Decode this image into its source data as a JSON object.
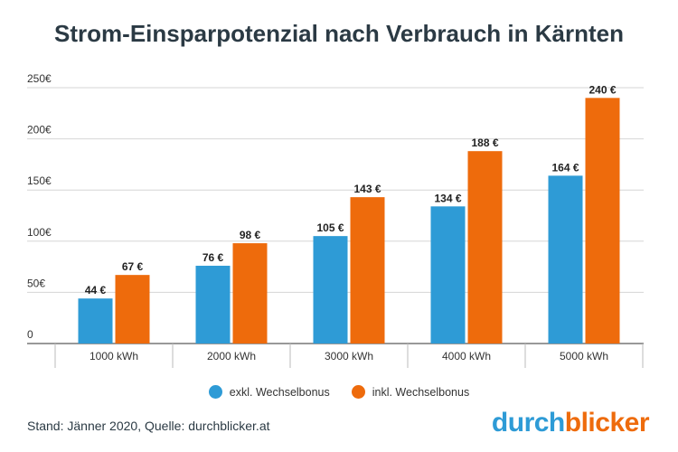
{
  "chart_data": {
    "type": "bar",
    "title": "Strom-Einsparpotenzial nach Verbrauch in Kärnten",
    "categories": [
      "1000 kWh",
      "2000 kWh",
      "3000 kWh",
      "4000 kWh",
      "5000 kWh"
    ],
    "series": [
      {
        "name": "exkl. Wechselbonus",
        "values": [
          44,
          76,
          105,
          134,
          164
        ],
        "labels": [
          "44 €",
          "76 €",
          "105 €",
          "134 €",
          "164 €"
        ],
        "color": "#2e9bd6"
      },
      {
        "name": "inkl. Wechselbonus",
        "values": [
          67,
          98,
          143,
          188,
          240
        ],
        "labels": [
          "67 €",
          "98 €",
          "143 €",
          "188 €",
          "240 €"
        ],
        "color": "#ee6b0c"
      }
    ],
    "ylim": [
      0,
      250
    ],
    "yticks": [
      0,
      50,
      100,
      150,
      200,
      250
    ],
    "ytick_labels": [
      "0",
      "50€",
      "100€",
      "150€",
      "200€",
      "250€"
    ],
    "xlabel": "",
    "ylabel": "",
    "grid": true,
    "legend_position": "bottom"
  },
  "footer": {
    "source": "Stand: Jänner 2020, Quelle: durchblicker.at",
    "brand_part1": "durch",
    "brand_part2": "blicker",
    "brand_color1": "#2e9bd6",
    "brand_color2": "#ee6b0c"
  }
}
